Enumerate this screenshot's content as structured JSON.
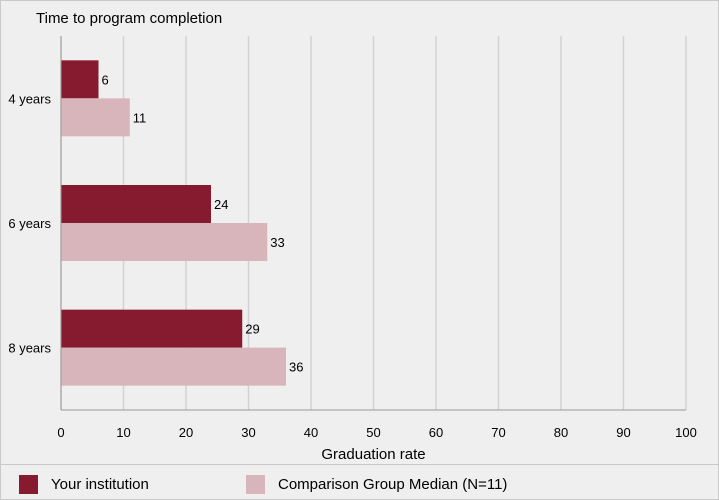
{
  "chart_data": {
    "type": "bar",
    "orientation": "horizontal",
    "title": "Time to program completion",
    "xlabel": "Graduation rate",
    "ylabel": "",
    "categories": [
      "4 years",
      "6 years",
      "8 years"
    ],
    "xlim": [
      0,
      100
    ],
    "xticks": [
      0,
      10,
      20,
      30,
      40,
      50,
      60,
      70,
      80,
      90,
      100
    ],
    "grid": true,
    "legend_position": "bottom",
    "series": [
      {
        "name": "Your institution",
        "values": [
          6,
          24,
          29
        ],
        "color": "#861a2e"
      },
      {
        "name": "Comparison Group Median (N=11)",
        "values": [
          11,
          33,
          36
        ],
        "color": "#d8b4bb"
      }
    ]
  }
}
